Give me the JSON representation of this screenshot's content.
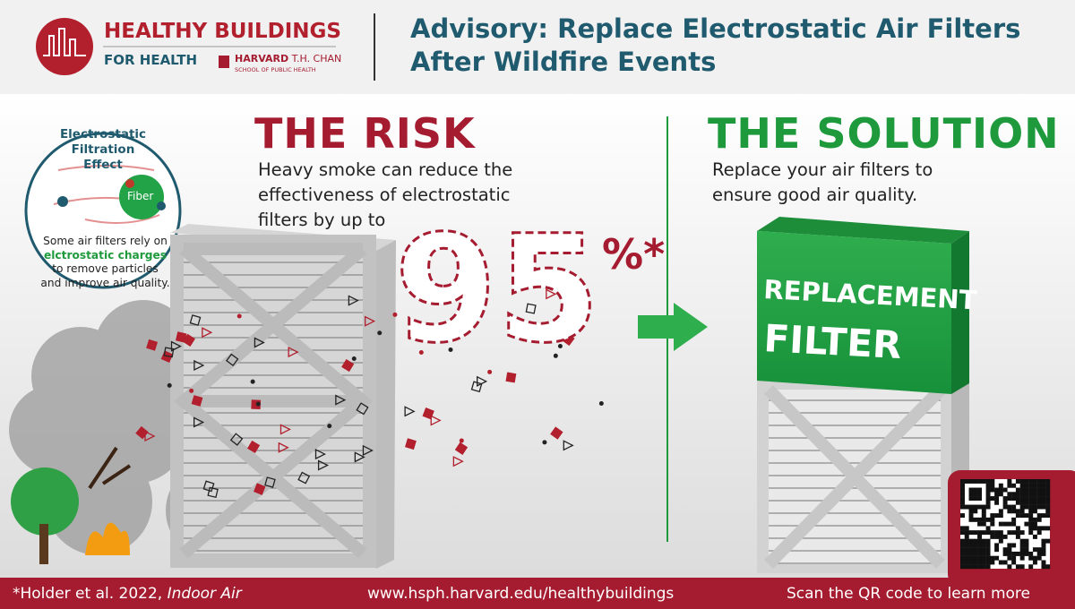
{
  "header": {
    "logo": {
      "line1": "HEALTHY BUILDINGS",
      "line2": "FOR HEALTH",
      "harvard": "HARVARD",
      "chan": "T.H. CHAN",
      "school": "SCHOOL OF PUBLIC HEALTH"
    },
    "title": [
      "Advisory: Replace Electrostatic Air Filters",
      "After Wildfire Events"
    ]
  },
  "inset": {
    "title": [
      "Electrostatic",
      "Filtration Effect"
    ],
    "fiber": "Fiber",
    "text_before": "Some air filters rely on",
    "text_highlight": "elctrostatic charges",
    "text_after": "to remove particles and improve air quality."
  },
  "risk": {
    "heading": "THE RISK",
    "text": [
      "Heavy smoke can reduce the",
      "effectiveness of electrostatic",
      "filters by up to"
    ],
    "stat": 95,
    "stat_suffix": "%*"
  },
  "solution": {
    "heading": "THE SOLUTION",
    "text": [
      "Replace your air filters to",
      "ensure good air quality."
    ],
    "filter_label": [
      "REPLACEMENT",
      "FILTER"
    ]
  },
  "footer": {
    "citation": "*Holder et al. 2022,",
    "journal": "Indoor Air",
    "url": "www.hsph.harvard.edu/healthybuildings",
    "qr_note": "Scan the QR code to learn more"
  }
}
